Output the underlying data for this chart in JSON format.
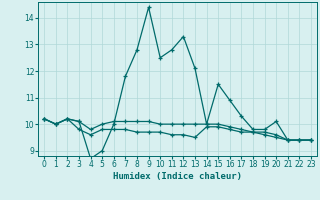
{
  "xlabel": "Humidex (Indice chaleur)",
  "background_color": "#d8f0f0",
  "line_color": "#006b6b",
  "grid_color": "#b0d8d8",
  "xlim": [
    -0.5,
    23.5
  ],
  "ylim": [
    8.8,
    14.6
  ],
  "yticks": [
    9,
    10,
    11,
    12,
    13,
    14
  ],
  "xticks": [
    0,
    1,
    2,
    3,
    4,
    5,
    6,
    7,
    8,
    9,
    10,
    11,
    12,
    13,
    14,
    15,
    16,
    17,
    18,
    19,
    20,
    21,
    22,
    23
  ],
  "line1_x": [
    0,
    1,
    2,
    3,
    4,
    5,
    6,
    7,
    8,
    9,
    10,
    11,
    12,
    13,
    14,
    15,
    16,
    17,
    18,
    19,
    20,
    21,
    22,
    23
  ],
  "line1_y": [
    10.2,
    10.0,
    10.2,
    10.1,
    8.7,
    9.0,
    10.0,
    11.8,
    12.8,
    14.4,
    12.5,
    12.8,
    13.3,
    12.1,
    10.0,
    11.5,
    10.9,
    10.3,
    9.8,
    9.8,
    10.1,
    9.4,
    9.4,
    9.4
  ],
  "line2_x": [
    0,
    1,
    2,
    3,
    4,
    5,
    6,
    7,
    8,
    9,
    10,
    11,
    12,
    13,
    14,
    15,
    16,
    17,
    18,
    19,
    20,
    21,
    22,
    23
  ],
  "line2_y": [
    10.2,
    10.0,
    10.2,
    10.1,
    9.8,
    10.0,
    10.1,
    10.1,
    10.1,
    10.1,
    10.0,
    10.0,
    10.0,
    10.0,
    10.0,
    10.0,
    9.9,
    9.8,
    9.7,
    9.7,
    9.6,
    9.4,
    9.4,
    9.4
  ],
  "line3_x": [
    0,
    1,
    2,
    3,
    4,
    5,
    6,
    7,
    8,
    9,
    10,
    11,
    12,
    13,
    14,
    15,
    16,
    17,
    18,
    19,
    20,
    21,
    22,
    23
  ],
  "line3_y": [
    10.2,
    10.0,
    10.2,
    9.8,
    9.6,
    9.8,
    9.8,
    9.8,
    9.7,
    9.7,
    9.7,
    9.6,
    9.6,
    9.5,
    9.9,
    9.9,
    9.8,
    9.7,
    9.7,
    9.6,
    9.5,
    9.4,
    9.4,
    9.4
  ]
}
